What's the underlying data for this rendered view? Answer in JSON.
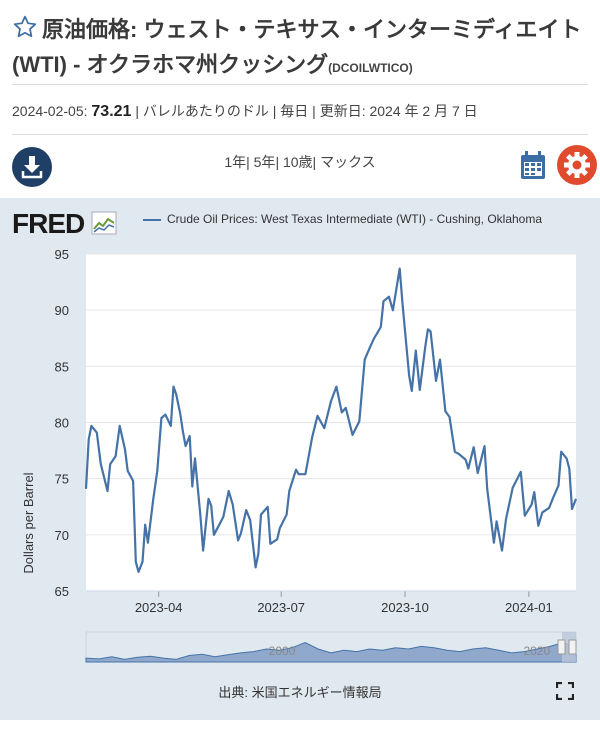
{
  "header": {
    "title": "原油価格: ウェスト・テキサス・インターミディエイト (WTI) - オクラホマ州クッシング",
    "series_id": "(DCOILWTICO)"
  },
  "meta": {
    "date": "2024-02-05:",
    "value": "73.21",
    "rest": "| バレルあたりのドル | 毎日 | 更新日: 2024 年 2 月 7 日"
  },
  "toolbar": {
    "ranges": [
      "1年",
      "5年",
      "10歳",
      "マックス"
    ]
  },
  "chart": {
    "logo": "FRED",
    "legend": "Crude Oil Prices: West Texas Intermediate (WTI) - Cushing, Oklahoma",
    "source": "出典: 米国エネルギー情報局"
  },
  "chart_data": {
    "type": "line",
    "ylabel": "Dollars per Barrel",
    "ylim": [
      65,
      95
    ],
    "yticks": [
      "65",
      "70",
      "75",
      "80",
      "85",
      "90",
      "95"
    ],
    "xticks": [
      "2023-04",
      "2023-07",
      "2023-10",
      "2024-01"
    ],
    "navigator_labels": [
      "2000",
      "2020"
    ],
    "grid": true,
    "legend_placement": "top",
    "series": [
      {
        "name": "Crude Oil Prices: West Texas Intermediate (WTI) - Cushing, Oklahoma",
        "color": "#4572a7",
        "points": [
          [
            "2023-02-06",
            74.1
          ],
          [
            "2023-02-08",
            78.5
          ],
          [
            "2023-02-10",
            79.7
          ],
          [
            "2023-02-14",
            79.1
          ],
          [
            "2023-02-17",
            76.3
          ],
          [
            "2023-02-22",
            73.9
          ],
          [
            "2023-02-24",
            76.3
          ],
          [
            "2023-02-28",
            77.0
          ],
          [
            "2023-03-03",
            79.7
          ],
          [
            "2023-03-07",
            77.6
          ],
          [
            "2023-03-09",
            75.7
          ],
          [
            "2023-03-13",
            74.8
          ],
          [
            "2023-03-15",
            67.6
          ],
          [
            "2023-03-17",
            66.7
          ],
          [
            "2023-03-20",
            67.6
          ],
          [
            "2023-03-22",
            70.9
          ],
          [
            "2023-03-24",
            69.3
          ],
          [
            "2023-03-28",
            73.2
          ],
          [
            "2023-03-31",
            75.7
          ],
          [
            "2023-04-03",
            80.4
          ],
          [
            "2023-04-06",
            80.7
          ],
          [
            "2023-04-10",
            79.7
          ],
          [
            "2023-04-12",
            83.2
          ],
          [
            "2023-04-14",
            82.5
          ],
          [
            "2023-04-17",
            80.8
          ],
          [
            "2023-04-19",
            79.2
          ],
          [
            "2023-04-21",
            77.9
          ],
          [
            "2023-04-24",
            78.8
          ],
          [
            "2023-04-26",
            74.3
          ],
          [
            "2023-04-28",
            76.8
          ],
          [
            "2023-05-02",
            71.7
          ],
          [
            "2023-05-04",
            68.6
          ],
          [
            "2023-05-08",
            73.2
          ],
          [
            "2023-05-10",
            72.6
          ],
          [
            "2023-05-12",
            70.0
          ],
          [
            "2023-05-16",
            70.9
          ],
          [
            "2023-05-19",
            71.6
          ],
          [
            "2023-05-23",
            73.9
          ],
          [
            "2023-05-26",
            72.7
          ],
          [
            "2023-05-30",
            69.5
          ],
          [
            "2023-06-01",
            70.1
          ],
          [
            "2023-06-05",
            72.2
          ],
          [
            "2023-06-08",
            71.3
          ],
          [
            "2023-06-12",
            67.1
          ],
          [
            "2023-06-14",
            68.3
          ],
          [
            "2023-06-16",
            71.8
          ],
          [
            "2023-06-21",
            72.5
          ],
          [
            "2023-06-23",
            69.2
          ],
          [
            "2023-06-28",
            69.6
          ],
          [
            "2023-06-30",
            70.6
          ],
          [
            "2023-07-05",
            71.8
          ],
          [
            "2023-07-07",
            73.9
          ],
          [
            "2023-07-12",
            75.8
          ],
          [
            "2023-07-14",
            75.4
          ],
          [
            "2023-07-19",
            75.4
          ],
          [
            "2023-07-24",
            78.7
          ],
          [
            "2023-07-28",
            80.6
          ],
          [
            "2023-08-02",
            79.5
          ],
          [
            "2023-08-07",
            81.9
          ],
          [
            "2023-08-11",
            83.2
          ],
          [
            "2023-08-15",
            80.9
          ],
          [
            "2023-08-18",
            81.3
          ],
          [
            "2023-08-23",
            78.9
          ],
          [
            "2023-08-28",
            80.1
          ],
          [
            "2023-09-01",
            85.6
          ],
          [
            "2023-09-05",
            86.7
          ],
          [
            "2023-09-08",
            87.5
          ],
          [
            "2023-09-13",
            88.5
          ],
          [
            "2023-09-15",
            90.8
          ],
          [
            "2023-09-19",
            91.2
          ],
          [
            "2023-09-22",
            90.0
          ],
          [
            "2023-09-27",
            93.7
          ],
          [
            "2023-09-29",
            90.8
          ],
          [
            "2023-10-04",
            84.2
          ],
          [
            "2023-10-06",
            82.8
          ],
          [
            "2023-10-09",
            86.4
          ],
          [
            "2023-10-12",
            82.9
          ],
          [
            "2023-10-16",
            86.7
          ],
          [
            "2023-10-18",
            88.3
          ],
          [
            "2023-10-20",
            88.1
          ],
          [
            "2023-10-24",
            83.7
          ],
          [
            "2023-10-27",
            85.6
          ],
          [
            "2023-10-31",
            81.0
          ],
          [
            "2023-11-03",
            80.5
          ],
          [
            "2023-11-07",
            77.4
          ],
          [
            "2023-11-10",
            77.2
          ],
          [
            "2023-11-15",
            76.7
          ],
          [
            "2023-11-17",
            75.9
          ],
          [
            "2023-11-21",
            77.8
          ],
          [
            "2023-11-24",
            75.5
          ],
          [
            "2023-11-29",
            77.9
          ],
          [
            "2023-12-01",
            74.1
          ],
          [
            "2023-12-06",
            69.3
          ],
          [
            "2023-12-08",
            71.2
          ],
          [
            "2023-12-12",
            68.6
          ],
          [
            "2023-12-15",
            71.4
          ],
          [
            "2023-12-20",
            74.2
          ],
          [
            "2023-12-26",
            75.6
          ],
          [
            "2023-12-29",
            71.7
          ],
          [
            "2024-01-03",
            72.7
          ],
          [
            "2024-01-05",
            73.8
          ],
          [
            "2024-01-08",
            70.8
          ],
          [
            "2024-01-11",
            72.0
          ],
          [
            "2024-01-16",
            72.4
          ],
          [
            "2024-01-19",
            73.3
          ],
          [
            "2024-01-23",
            74.4
          ],
          [
            "2024-01-25",
            77.4
          ],
          [
            "2024-01-29",
            76.8
          ],
          [
            "2024-01-31",
            75.9
          ],
          [
            "2024-02-02",
            72.3
          ],
          [
            "2024-02-05",
            73.2
          ]
        ]
      }
    ]
  }
}
